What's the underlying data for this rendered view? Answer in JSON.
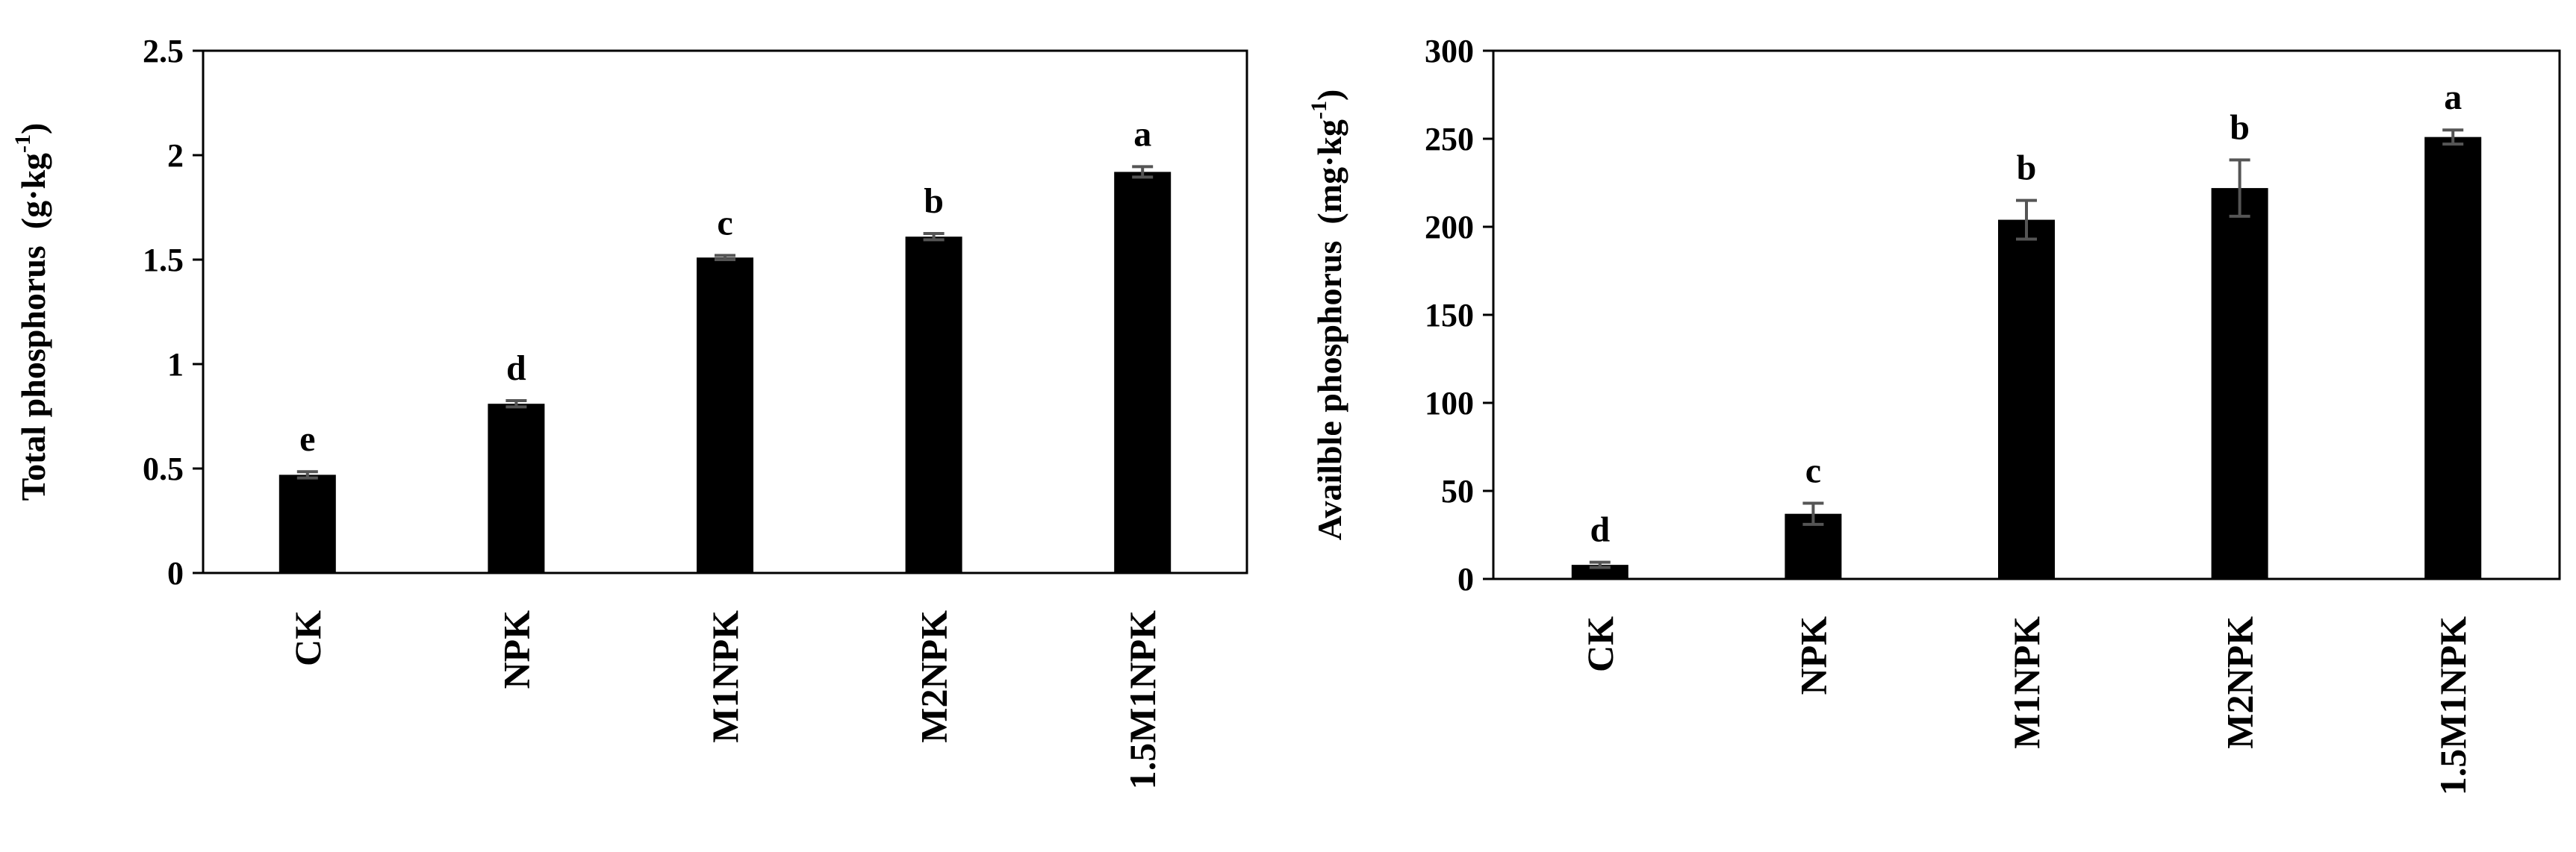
{
  "chart_data": [
    {
      "type": "bar",
      "categories": [
        "CK",
        "NPK",
        "M1NPK",
        "M2NPK",
        "1.5M1NPK"
      ],
      "values": [
        0.47,
        0.81,
        1.51,
        1.61,
        1.92
      ],
      "errors": [
        0.015,
        0.015,
        0.01,
        0.015,
        0.025
      ],
      "significance": [
        "e",
        "d",
        "c",
        "b",
        "a"
      ],
      "ylabel": {
        "main": "Total phosphorus",
        "unit": "(g·kg",
        "sup": "-1",
        "close": ")"
      },
      "xlabel": "",
      "ylim": [
        0,
        2.5
      ],
      "yticks": [
        "0",
        "0.5",
        "1",
        "1.5",
        "2",
        "2.5"
      ],
      "bar_color": "#000000",
      "error_color": "#555555",
      "grid": false
    },
    {
      "type": "bar",
      "categories": [
        "CK",
        "NPK",
        "M1NPK",
        "M2NPK",
        "1.5M1NPK"
      ],
      "values": [
        8,
        37,
        204,
        222,
        251
      ],
      "errors": [
        1.5,
        6,
        11,
        16,
        4
      ],
      "significance": [
        "d",
        "c",
        "b",
        "b",
        "a"
      ],
      "ylabel": {
        "main": "Availble phosphorus",
        "unit": "(mg·kg",
        "sup": "-1",
        "close": ")"
      },
      "xlabel": "",
      "ylim": [
        0,
        300
      ],
      "yticks": [
        "0",
        "50",
        "100",
        "150",
        "200",
        "250",
        "300"
      ],
      "bar_color": "#000000",
      "error_color": "#555555",
      "grid": false
    }
  ]
}
